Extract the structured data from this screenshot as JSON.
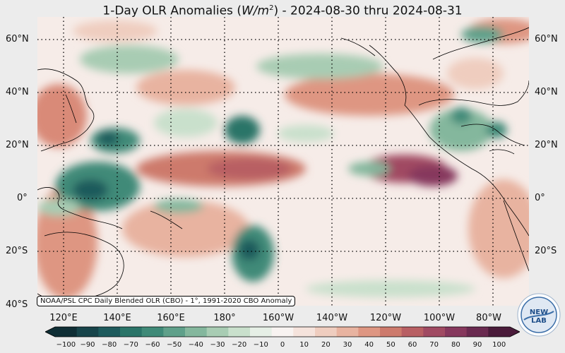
{
  "title": {
    "prefix": "1-Day OLR Anomalies (",
    "unit_var": "W/m",
    "unit_exp": "2",
    "suffix": ") - 2024-08-30 thru 2024-08-31"
  },
  "source_note": "NOAA/PSL CPC Daily Blended OLR (CBO) - 1°, 1991-2020 CBO Anomaly",
  "logo": {
    "text_a": "NEW",
    "text_b": "LAB",
    "icon": "noaa-psl-logo-icon"
  },
  "lat_labels": [
    "60°N",
    "40°N",
    "20°N",
    "0°",
    "20°S",
    "40°S"
  ],
  "lon_labels": [
    "120°E",
    "140°E",
    "160°E",
    "180°",
    "160°W",
    "140°W",
    "120°W",
    "100°W",
    "80°W"
  ],
  "colorbar": {
    "ticks": [
      "−100",
      "−90",
      "−80",
      "−70",
      "−60",
      "−50",
      "−40",
      "−30",
      "−20",
      "−10",
      "0",
      "10",
      "20",
      "30",
      "40",
      "50",
      "60",
      "70",
      "80",
      "90",
      "100"
    ],
    "colors": [
      "#0f2e35",
      "#17444a",
      "#1d5a5c",
      "#2a7468",
      "#3f8a78",
      "#5fa08a",
      "#84b79d",
      "#a8ccb3",
      "#c9e0cc",
      "#e6efe6",
      "#f8f3f1",
      "#f5e3dc",
      "#efcdbf",
      "#e8b3a0",
      "#de9682",
      "#cd7a6c",
      "#b85f63",
      "#a04a62",
      "#86385d",
      "#6a2a50",
      "#4a1b3a"
    ]
  },
  "legend_colors": {
    "negative": "#1d5a5c",
    "neutral": "#f8f3f1",
    "positive": "#86385d"
  }
}
